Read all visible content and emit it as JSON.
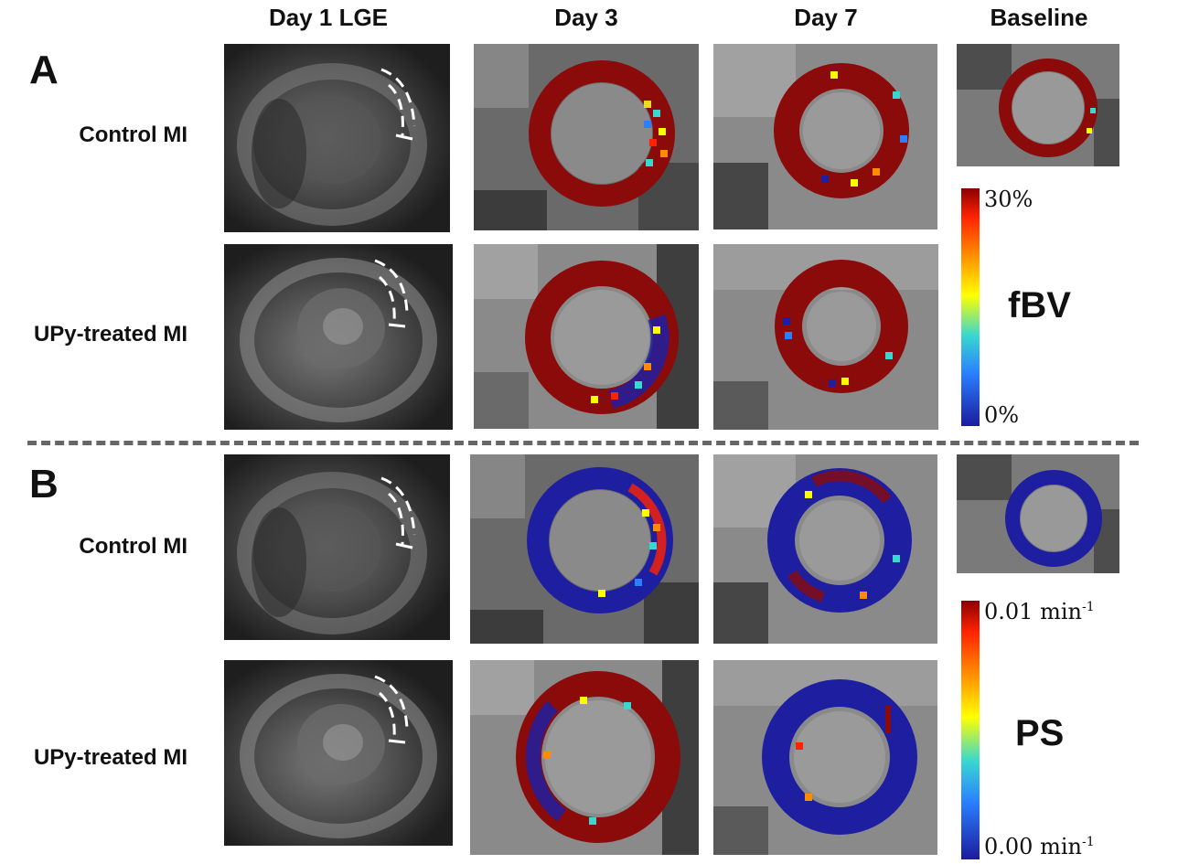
{
  "columns": [
    "Day 1 LGE",
    "Day 3",
    "Day 7",
    "Baseline"
  ],
  "panels": [
    {
      "letter": "A",
      "rows": [
        "Control MI",
        "UPy-treated MI"
      ],
      "colorbar": {
        "metric": "fBV",
        "max_label": "30%",
        "min_label": "0%"
      }
    },
    {
      "letter": "B",
      "rows": [
        "Control MI",
        "UPy-treated MI"
      ],
      "colorbar": {
        "metric": "PS",
        "max_value": "0.01 min",
        "min_value": "0.00 min",
        "unit_exponent": "-1"
      }
    }
  ],
  "colors": {
    "ring_red": "#8b0a0a",
    "ring_blue": "#1e1ea0",
    "lge_gray": "#5a5a5a",
    "divider": "#666666"
  }
}
